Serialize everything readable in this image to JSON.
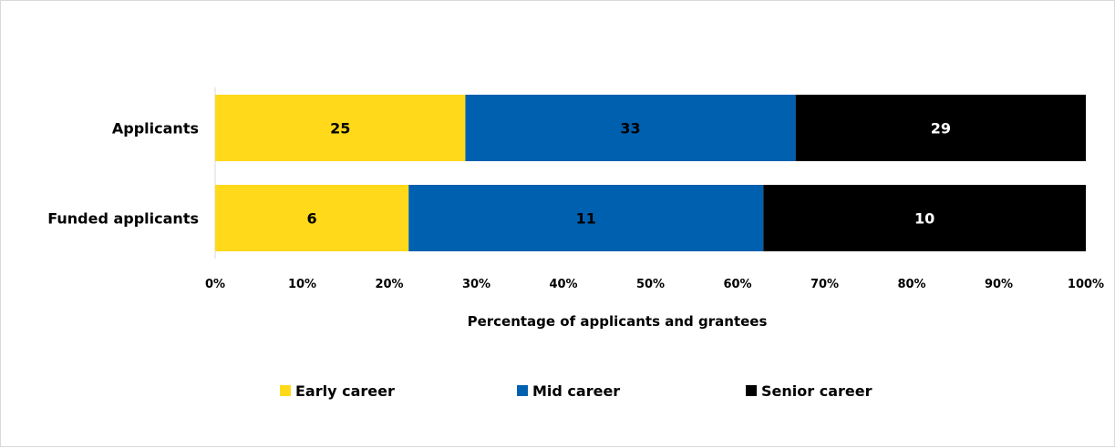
{
  "chart_data": {
    "type": "bar",
    "orientation": "horizontal",
    "stacking": "percent",
    "categories": [
      "Applicants",
      "Funded applicants"
    ],
    "series": [
      {
        "name": "Early career",
        "values": [
          25,
          6
        ],
        "color": "#FFD91A",
        "label_color": "#000000"
      },
      {
        "name": "Mid career",
        "values": [
          33,
          11
        ],
        "color": "#0060B0",
        "label_color": "#000000"
      },
      {
        "name": "Senior career",
        "values": [
          29,
          10
        ],
        "color": "#000000",
        "label_color": "#ffffff"
      }
    ],
    "xlabel": "Percentage of applicants and grantees",
    "xlim": [
      0,
      100
    ],
    "xticks": [
      "0%",
      "10%",
      "20%",
      "30%",
      "40%",
      "50%",
      "60%",
      "70%",
      "80%",
      "90%",
      "100%"
    ],
    "grid": false,
    "legend_position": "bottom"
  }
}
